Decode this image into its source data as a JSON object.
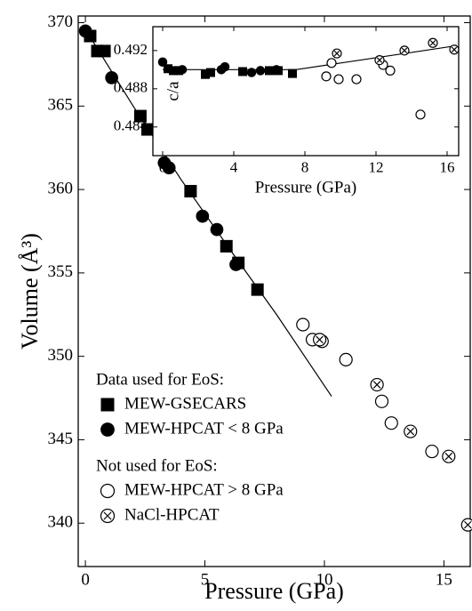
{
  "chart_data": [
    {
      "type": "scatter",
      "x_label": "Pressure (GPa)",
      "y_label": "Volume (Å³)",
      "xlim": [
        -0.3,
        16.1
      ],
      "ylim": [
        337.4,
        370.4
      ],
      "xticks": [
        0,
        5,
        10,
        15
      ],
      "yticks": [
        340,
        345,
        350,
        355,
        360,
        365,
        370
      ],
      "legend_titles": [
        "Data used for EoS:",
        "Not used for EoS:"
      ],
      "series": [
        {
          "name": "MEW-GSECARS",
          "marker": "square",
          "color": "#000000",
          "x": [
            0.2,
            0.5,
            0.8,
            2.3,
            2.6,
            4.4,
            5.9,
            6.4,
            7.2
          ],
          "values": [
            369.2,
            368.3,
            368.3,
            364.4,
            363.6,
            359.9,
            356.6,
            355.6,
            354.0
          ]
        },
        {
          "name": "MEW-HPCAT < 8 GPa",
          "marker": "circle",
          "color": "#000000",
          "x": [
            0,
            1.1,
            3.3,
            3.5,
            4.9,
            5.5,
            6.3
          ],
          "values": [
            369.5,
            366.7,
            361.6,
            361.3,
            358.4,
            357.6,
            355.5
          ]
        },
        {
          "name": "MEW-HPCAT > 8 GPa",
          "marker": "open-circle",
          "color": "#000000",
          "x": [
            9.1,
            9.5,
            9.9,
            10.9,
            12.4,
            12.8,
            14.5
          ],
          "values": [
            351.9,
            351.0,
            350.9,
            349.8,
            347.3,
            346.0,
            344.3
          ]
        },
        {
          "name": "NaCl-HPCAT",
          "marker": "crossed-circle",
          "color": "#000000",
          "x": [
            9.8,
            12.2,
            13.6,
            15.2,
            16.0
          ],
          "values": [
            351.0,
            348.3,
            345.5,
            344.0,
            339.9
          ]
        }
      ],
      "fit": {
        "x": [
          0,
          2,
          4,
          6,
          8,
          10.3
        ],
        "values": [
          369.6,
          365.0,
          360.6,
          356.5,
          352.5,
          347.6
        ]
      }
    },
    {
      "type": "scatter",
      "x_label": "Pressure (GPa)",
      "y_label": "c/a",
      "xlim": [
        -0.55,
        16.65
      ],
      "ylim": [
        0.481,
        0.4945
      ],
      "xticks": [
        0,
        4,
        8,
        12,
        16
      ],
      "yticks": [
        0.484,
        0.488,
        0.492
      ],
      "series": [
        {
          "marker": "square",
          "color": "#000000",
          "x": [
            0.3,
            0.6,
            0.9,
            2.4,
            2.7,
            4.5,
            6.0,
            6.5,
            7.3
          ],
          "values": [
            0.4901,
            0.4899,
            0.4899,
            0.4895,
            0.4897,
            0.4898,
            0.4899,
            0.4899,
            0.4896
          ]
        },
        {
          "marker": "circle",
          "color": "#000000",
          "x": [
            0,
            1.1,
            3.3,
            3.5,
            5.0,
            5.5,
            6.4
          ],
          "values": [
            0.4908,
            0.49,
            0.49,
            0.4903,
            0.4897,
            0.4899,
            0.49
          ]
        },
        {
          "marker": "open-circle",
          "color": "#000000",
          "x": [
            9.2,
            9.5,
            9.9,
            10.9,
            12.4,
            12.8,
            14.5
          ],
          "values": [
            0.4893,
            0.4907,
            0.489,
            0.489,
            0.4905,
            0.4899,
            0.4853
          ]
        },
        {
          "marker": "crossed-circle",
          "color": "#000000",
          "x": [
            9.8,
            12.2,
            13.6,
            15.2,
            16.4
          ],
          "values": [
            0.4917,
            0.491,
            0.492,
            0.4928,
            0.4921
          ]
        }
      ],
      "fit": {
        "x": [
          0,
          7.5,
          16.5
        ],
        "values": [
          0.49,
          0.49,
          0.4925
        ]
      }
    }
  ]
}
